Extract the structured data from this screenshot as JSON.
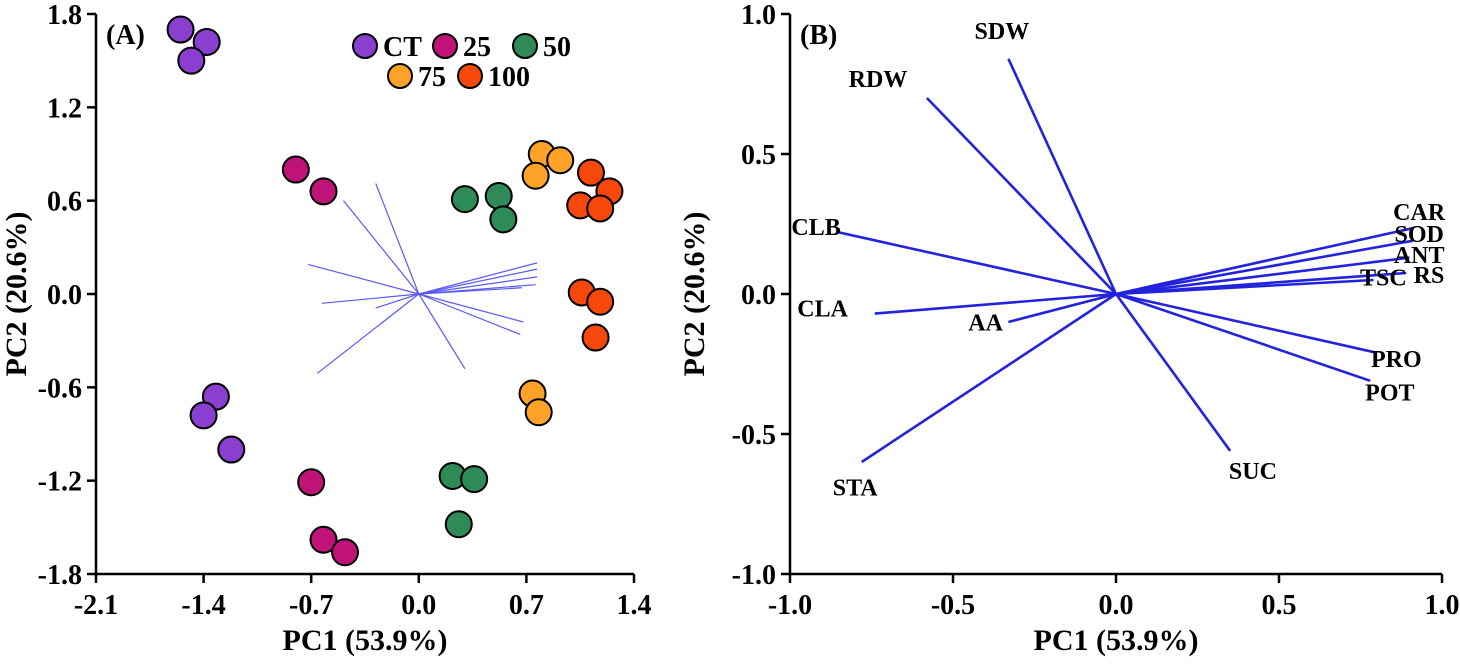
{
  "figure": {
    "background": "#ffffff",
    "accent_vector_color": "#2323dd"
  },
  "chart_data": [
    {
      "id": "A",
      "type": "scatter",
      "panel_label": "(A)",
      "title": "",
      "xlabel": "PC1 (53.9%)",
      "ylabel": "PC2 (20.6%)",
      "xlim": [
        -2.1,
        1.4
      ],
      "ylim": [
        -1.8,
        1.8
      ],
      "xticks": [
        "-2.1",
        "-1.4",
        "-0.7",
        "0.0",
        "0.7",
        "1.4"
      ],
      "yticks": [
        "-1.8",
        "-1.2",
        "-0.6",
        "0.0",
        "0.6",
        "1.2",
        "1.8"
      ],
      "grid": false,
      "legend_position": "top-center",
      "vector_color": "#5a5af0",
      "vector_width": 1.2,
      "vectors": [
        {
          "x": -0.28,
          "y": 0.71
        },
        {
          "x": -0.49,
          "y": 0.6
        },
        {
          "x": -0.72,
          "y": 0.19
        },
        {
          "x": -0.63,
          "y": -0.06
        },
        {
          "x": -0.28,
          "y": -0.09
        },
        {
          "x": -0.66,
          "y": -0.51
        },
        {
          "x": 0.3,
          "y": -0.48
        },
        {
          "x": 0.77,
          "y": 0.2
        },
        {
          "x": 0.77,
          "y": 0.16
        },
        {
          "x": 0.77,
          "y": 0.11
        },
        {
          "x": 0.76,
          "y": 0.06
        },
        {
          "x": 0.67,
          "y": 0.04
        },
        {
          "x": 0.68,
          "y": -0.18
        },
        {
          "x": 0.66,
          "y": -0.26
        }
      ],
      "legend": [
        {
          "label": "CT",
          "color": "#8a3fd1"
        },
        {
          "label": "25",
          "color": "#c0137a"
        },
        {
          "label": "50",
          "color": "#2e8b57"
        },
        {
          "label": "75",
          "color": "#ffa227"
        },
        {
          "label": "100",
          "color": "#f6480a"
        }
      ],
      "series": [
        {
          "name": "CT",
          "color": "#8a3fd1",
          "points": [
            [
              -1.55,
              1.7
            ],
            [
              -1.38,
              1.62
            ],
            [
              -1.48,
              1.5
            ],
            [
              -1.32,
              -0.66
            ],
            [
              -1.4,
              -0.78
            ],
            [
              -1.22,
              -1.0
            ]
          ]
        },
        {
          "name": "25",
          "color": "#c0137a",
          "points": [
            [
              -0.8,
              0.8
            ],
            [
              -0.62,
              0.66
            ],
            [
              -0.7,
              -1.21
            ],
            [
              -0.62,
              -1.58
            ],
            [
              -0.48,
              -1.66
            ]
          ]
        },
        {
          "name": "50",
          "color": "#2e8b57",
          "points": [
            [
              0.3,
              0.61
            ],
            [
              0.52,
              0.63
            ],
            [
              0.55,
              0.48
            ],
            [
              0.22,
              -1.17
            ],
            [
              0.36,
              -1.19
            ],
            [
              0.26,
              -1.48
            ]
          ]
        },
        {
          "name": "75",
          "color": "#ffa227",
          "points": [
            [
              0.8,
              0.9
            ],
            [
              0.92,
              0.86
            ],
            [
              0.76,
              0.76
            ],
            [
              0.74,
              -0.64
            ],
            [
              0.78,
              -0.76
            ]
          ]
        },
        {
          "name": "100",
          "color": "#f6480a",
          "points": [
            [
              1.12,
              0.78
            ],
            [
              1.24,
              0.66
            ],
            [
              1.05,
              0.57
            ],
            [
              1.18,
              0.55
            ],
            [
              1.06,
              0.01
            ],
            [
              1.18,
              -0.05
            ],
            [
              1.15,
              -0.28
            ]
          ]
        }
      ]
    },
    {
      "id": "B",
      "type": "scatter",
      "panel_label": "(B)",
      "title": "",
      "xlabel": "PC1 (53.9%)",
      "ylabel": "PC2 (20.6%)",
      "xlim": [
        -1.0,
        1.0
      ],
      "ylim": [
        -1.0,
        1.0
      ],
      "xticks": [
        "-1.0",
        "-0.5",
        "0.0",
        "0.5",
        "1.0"
      ],
      "yticks": [
        "-1.0",
        "-0.5",
        "0.0",
        "0.5",
        "1.0"
      ],
      "grid": false,
      "vector_color": "#2323dd",
      "vector_width": 2.6,
      "vectors": [
        {
          "label": "SDW",
          "x": -0.33,
          "y": 0.84,
          "lx": -0.35,
          "ly": 0.91
        },
        {
          "label": "RDW",
          "x": -0.58,
          "y": 0.7,
          "lx": -0.73,
          "ly": 0.74
        },
        {
          "label": "CLB",
          "x": -0.85,
          "y": 0.22,
          "lx": -0.92,
          "ly": 0.21
        },
        {
          "label": "CLA",
          "x": -0.74,
          "y": -0.07,
          "lx": -0.9,
          "ly": -0.08
        },
        {
          "label": "AA",
          "x": -0.33,
          "y": -0.1,
          "lx": -0.4,
          "ly": -0.13
        },
        {
          "label": "STA",
          "x": -0.78,
          "y": -0.6,
          "lx": -0.8,
          "ly": -0.72
        },
        {
          "label": "SUC",
          "x": 0.35,
          "y": -0.56,
          "lx": 0.42,
          "ly": -0.66
        },
        {
          "label": "CAR",
          "x": 0.91,
          "y": 0.235,
          "lx": 0.93,
          "ly": 0.265
        },
        {
          "label": "SOD",
          "x": 0.91,
          "y": 0.19,
          "lx": 0.93,
          "ly": 0.185
        },
        {
          "label": "ANT",
          "x": 0.9,
          "y": 0.13,
          "lx": 0.93,
          "ly": 0.11
        },
        {
          "label": "RS",
          "x": 0.89,
          "y": 0.075,
          "lx": 0.96,
          "ly": 0.04
        },
        {
          "label": "TSC",
          "x": 0.79,
          "y": 0.05,
          "lx": 0.82,
          "ly": 0.03
        },
        {
          "label": "PRO",
          "x": 0.8,
          "y": -0.21,
          "lx": 0.86,
          "ly": -0.26
        },
        {
          "label": "POT",
          "x": 0.78,
          "y": -0.31,
          "lx": 0.84,
          "ly": -0.38
        }
      ],
      "series": []
    }
  ]
}
